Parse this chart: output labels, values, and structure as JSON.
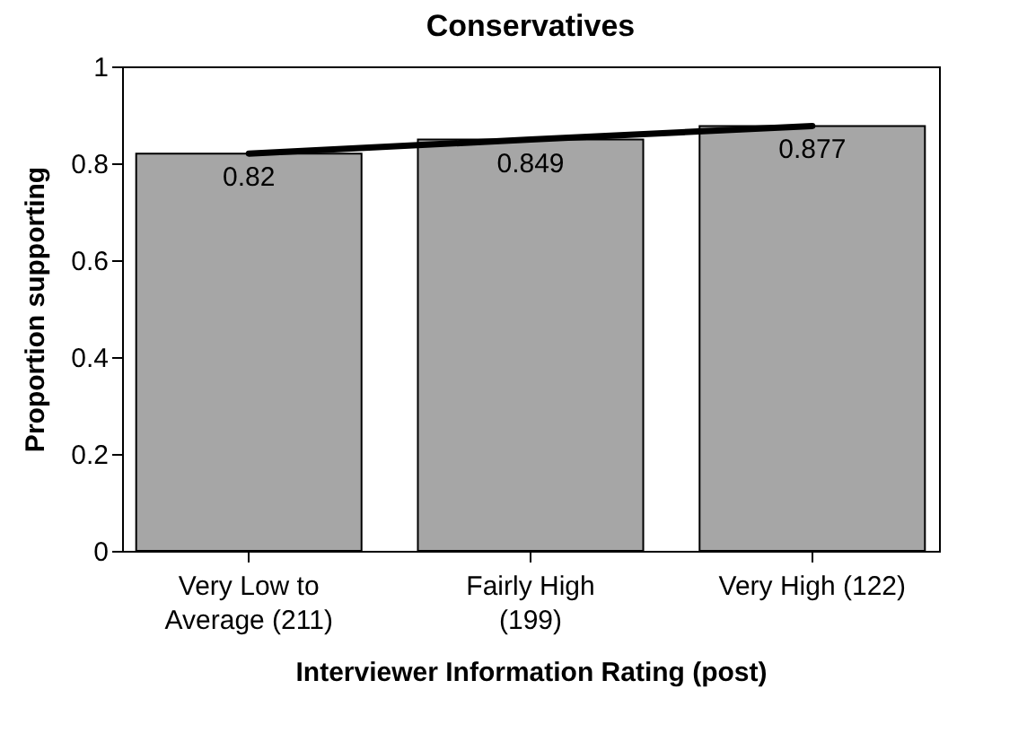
{
  "chart_data": {
    "type": "bar",
    "title": "Conservatives",
    "xlabel": "Interviewer Information Rating (post)",
    "ylabel": "Proportion supporting",
    "categories": [
      "Very Low to\nAverage (211)",
      "Fairly High\n(199)",
      "Very High (122)"
    ],
    "series": [
      {
        "color": "#a6a6a6",
        "values": [
          0.82,
          0.849,
          0.877
        ],
        "value_labels": [
          "0.82",
          "0.849",
          "0.877"
        ]
      },
      {
        "type": "line",
        "color": "#000000",
        "values": [
          0.82,
          0.849,
          0.877
        ]
      }
    ],
    "ylim": [
      0,
      1
    ],
    "yticks": [
      0,
      0.2,
      0.4,
      0.6,
      0.8,
      1
    ],
    "grid": false,
    "marker": "none",
    "line_style": "solid"
  }
}
